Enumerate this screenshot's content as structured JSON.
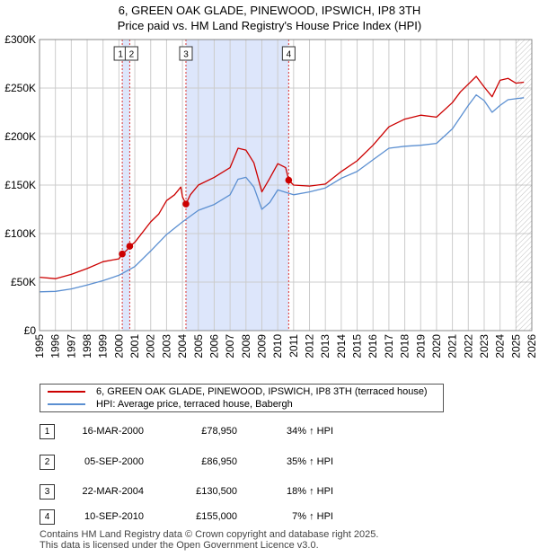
{
  "title": {
    "line1": "6, GREEN OAK GLADE, PINEWOOD, IPSWICH, IP8 3TH",
    "line2": "Price paid vs. HM Land Registry's House Price Index (HPI)"
  },
  "legend": {
    "property_label": "6, GREEN OAK GLADE, PINEWOOD, IPSWICH, IP8 3TH (terraced house)",
    "hpi_label": "HPI: Average price, terraced house, Babergh"
  },
  "colors": {
    "property_line": "#cc0000",
    "hpi_line": "#5b8fd1",
    "shade": "#dde6fb",
    "grid": "#cccccc",
    "vline": "#dd3333"
  },
  "chart_data": {
    "type": "line",
    "title": "Price paid vs. HM Land Registry's House Price Index (HPI)",
    "xlabel": "",
    "ylabel": "",
    "xlim": [
      1995,
      2026
    ],
    "ylim": [
      0,
      300000
    ],
    "x_ticks": [
      1995,
      1996,
      1997,
      1998,
      1999,
      2000,
      2001,
      2002,
      2003,
      2004,
      2005,
      2006,
      2007,
      2008,
      2009,
      2010,
      2011,
      2012,
      2013,
      2014,
      2015,
      2016,
      2017,
      2018,
      2019,
      2020,
      2021,
      2022,
      2023,
      2024,
      2025,
      2026
    ],
    "y_ticks": [
      0,
      50000,
      100000,
      150000,
      200000,
      250000,
      300000
    ],
    "y_tick_labels": [
      "£0",
      "£50K",
      "£100K",
      "£150K",
      "£200K",
      "£250K",
      "£300K"
    ],
    "grid": true,
    "shaded_ranges": [
      [
        2000.21,
        2000.68
      ],
      [
        2004.22,
        2010.69
      ]
    ],
    "forecast_start": 2025.0,
    "series": [
      {
        "name": "6, GREEN OAK GLADE, PINEWOOD, IPSWICH, IP8 3TH (terraced house)",
        "x": [
          1995.0,
          1996.0,
          1997.0,
          1998.0,
          1999.0,
          2000.0,
          2000.21,
          2000.5,
          2000.68,
          2001.0,
          2002.0,
          2002.5,
          2003.0,
          2003.5,
          2003.9,
          2004.0,
          2004.22,
          2004.5,
          2005.0,
          2006.0,
          2007.0,
          2007.5,
          2008.0,
          2008.5,
          2009.0,
          2009.5,
          2010.0,
          2010.5,
          2010.69,
          2011.0,
          2012.0,
          2013.0,
          2014.0,
          2015.0,
          2016.0,
          2017.0,
          2018.0,
          2019.0,
          2020.0,
          2021.0,
          2021.5,
          2022.0,
          2022.5,
          2023.0,
          2023.5,
          2024.0,
          2024.5,
          2025.0,
          2025.5
        ],
        "y": [
          55000,
          53500,
          58000,
          64000,
          71000,
          74000,
          78950,
          83000,
          86950,
          91000,
          112000,
          120000,
          134000,
          140000,
          148000,
          138000,
          130500,
          140000,
          150000,
          158000,
          168000,
          188000,
          186000,
          173000,
          143000,
          157000,
          172000,
          168000,
          155000,
          150000,
          149000,
          151000,
          164000,
          175000,
          191000,
          210000,
          218000,
          222000,
          220000,
          235000,
          246000,
          254000,
          262000,
          251000,
          241000,
          258000,
          260000,
          255000,
          256000
        ],
        "color": "#cc0000"
      },
      {
        "name": "HPI: Average price, terraced house, Babergh",
        "x": [
          1995.0,
          1996.0,
          1997.0,
          1998.0,
          1999.0,
          2000.0,
          2001.0,
          2002.0,
          2003.0,
          2004.0,
          2005.0,
          2006.0,
          2007.0,
          2007.5,
          2008.0,
          2008.5,
          2009.0,
          2009.5,
          2010.0,
          2011.0,
          2012.0,
          2013.0,
          2014.0,
          2015.0,
          2016.0,
          2017.0,
          2018.0,
          2019.0,
          2020.0,
          2021.0,
          2022.0,
          2022.5,
          2023.0,
          2023.5,
          2024.0,
          2024.5,
          2025.0,
          2025.5
        ],
        "y": [
          40000,
          40500,
          43000,
          47000,
          51500,
          57000,
          66000,
          82000,
          99000,
          112000,
          124000,
          130000,
          140000,
          156000,
          158000,
          148000,
          125000,
          132000,
          145000,
          140000,
          143000,
          147000,
          157000,
          164000,
          176000,
          188000,
          190000,
          191000,
          193000,
          208000,
          232000,
          243000,
          237000,
          225000,
          232000,
          238000,
          239000,
          240000
        ],
        "color": "#5b8fd1"
      }
    ],
    "sale_markers": [
      {
        "label": "1",
        "x": 2000.21,
        "y": 78950
      },
      {
        "label": "2",
        "x": 2000.68,
        "y": 86950
      },
      {
        "label": "3",
        "x": 2004.22,
        "y": 130500
      },
      {
        "label": "4",
        "x": 2010.69,
        "y": 155000
      }
    ]
  },
  "sales": [
    {
      "num": "1",
      "date": "16-MAR-2000",
      "price": "£78,950",
      "hpi": "34% ↑ HPI"
    },
    {
      "num": "2",
      "date": "05-SEP-2000",
      "price": "£86,950",
      "hpi": "35% ↑ HPI"
    },
    {
      "num": "3",
      "date": "22-MAR-2004",
      "price": "£130,500",
      "hpi": "18% ↑ HPI"
    },
    {
      "num": "4",
      "date": "10-SEP-2010",
      "price": "£155,000",
      "hpi": "7% ↑ HPI"
    }
  ],
  "footer": {
    "line1": "Contains HM Land Registry data © Crown copyright and database right 2025.",
    "line2": "This data is licensed under the Open Government Licence v3.0."
  }
}
